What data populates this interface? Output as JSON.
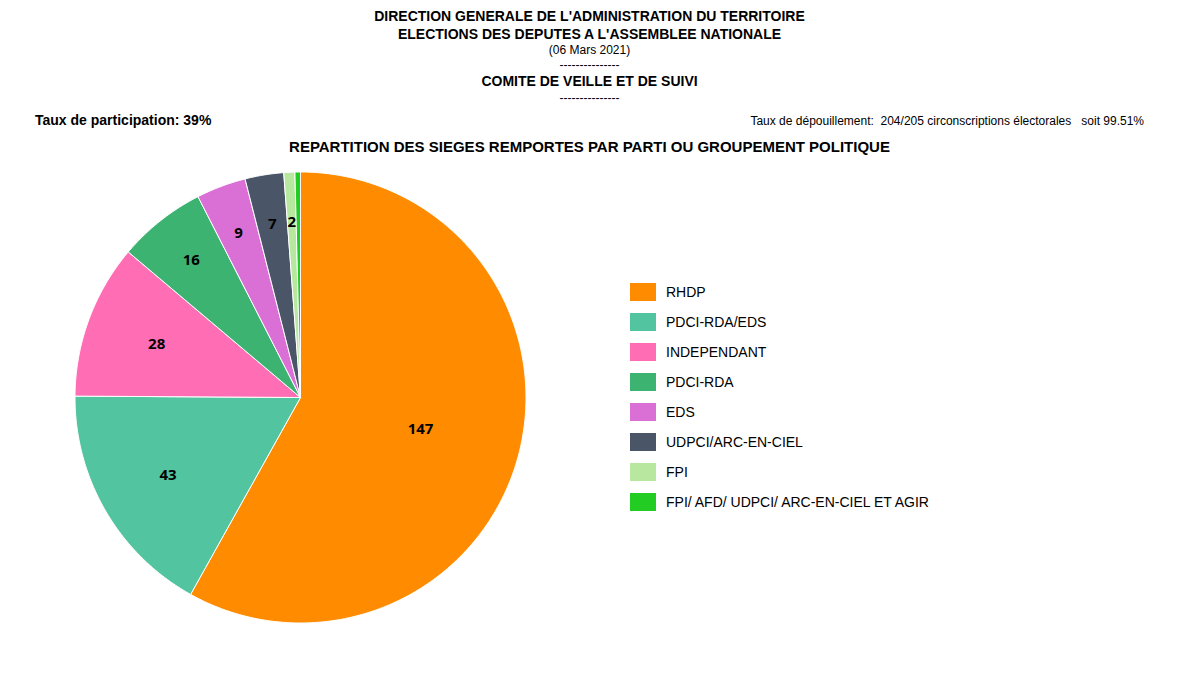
{
  "chart_data": {
    "type": "pie",
    "title": "REPARTITION DES SIEGES REMPORTES PAR PARTI OU GROUPEMENT POLITIQUE",
    "annotations": [
      "DIRECTION GENERALE DE L'ADMINISTRATION DU TERRITOIRE",
      "ELECTIONS DES DEPUTES A L'ASSEMBLEE NATIONALE",
      "(06 Mars 2021)",
      "---------------",
      "COMITE DE VEILLE ET DE SUIVI",
      "---------------",
      "Taux de participation: 39%",
      "Taux de dépouillement:  204/205 circonscriptions électorales   soit 99.51%"
    ],
    "categories": [
      "RHDP",
      "PDCI-RDA/EDS",
      "INDEPENDANT",
      "PDCI-RDA",
      "EDS",
      "UDPCI/ARC-EN-CIEL",
      "FPI",
      "FPI/ AFD/ UDPCI/ ARC-EN-CIEL ET AGIR"
    ],
    "values": [
      147,
      43,
      28,
      16,
      9,
      7,
      2,
      1
    ],
    "colors": [
      "#FF8C00",
      "#52C4A0",
      "#FF6EB4",
      "#3CB371",
      "#DA70D6",
      "#4A5568",
      "#B8E8A0",
      "#22CC22"
    ],
    "data_labels": true,
    "value_labels": [
      "147",
      "43",
      "28",
      "16",
      "9",
      "7",
      "2",
      null
    ],
    "legend": "right"
  }
}
